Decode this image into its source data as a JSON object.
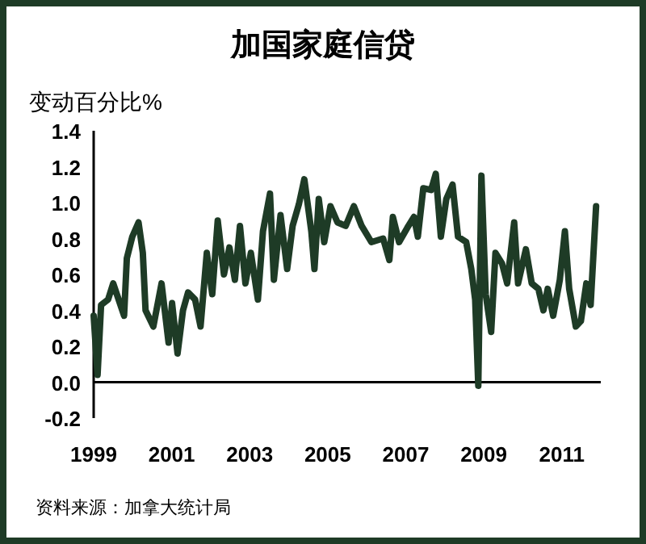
{
  "chart_data": {
    "type": "line",
    "title": "加国家庭信贷",
    "ylabel": "变动百分比%",
    "annotations": [
      "资料来源：加拿大统计局"
    ],
    "x": [
      1999.0,
      1999.1,
      1999.19,
      1999.37,
      1999.5,
      1999.64,
      1999.78,
      1999.85,
      1999.99,
      2000.15,
      2000.26,
      2000.33,
      2000.53,
      2000.74,
      2000.92,
      2001.01,
      2001.15,
      2001.29,
      2001.42,
      2001.6,
      2001.74,
      2001.9,
      2002.04,
      2002.18,
      2002.34,
      2002.48,
      2002.62,
      2002.75,
      2002.89,
      2003.03,
      2003.21,
      2003.34,
      2003.52,
      2003.62,
      2003.79,
      2003.96,
      2004.1,
      2004.26,
      2004.4,
      2004.58,
      2004.66,
      2004.77,
      2004.91,
      2005.07,
      2005.25,
      2005.46,
      2005.67,
      2005.87,
      2006.12,
      2006.42,
      2006.58,
      2006.67,
      2006.83,
      2007.04,
      2007.21,
      2007.31,
      2007.45,
      2007.65,
      2007.77,
      2007.9,
      2008.04,
      2008.2,
      2008.34,
      2008.55,
      2008.68,
      2008.78,
      2008.86,
      2008.94,
      2009.05,
      2009.19,
      2009.3,
      2009.47,
      2009.6,
      2009.78,
      2009.88,
      2010.08,
      2010.23,
      2010.4,
      2010.53,
      2010.64,
      2010.78,
      2010.95,
      2011.08,
      2011.19,
      2011.36,
      2011.49,
      2011.63,
      2011.74,
      2011.88
    ],
    "series": [
      {
        "color": "#1e3b26",
        "values": [
          0.37,
          0.04,
          0.43,
          0.46,
          0.55,
          0.46,
          0.37,
          0.69,
          0.81,
          0.89,
          0.72,
          0.4,
          0.31,
          0.55,
          0.22,
          0.44,
          0.16,
          0.4,
          0.5,
          0.46,
          0.31,
          0.72,
          0.49,
          0.9,
          0.6,
          0.75,
          0.57,
          0.87,
          0.55,
          0.72,
          0.46,
          0.84,
          1.05,
          0.57,
          0.93,
          0.63,
          0.87,
          0.99,
          1.13,
          0.84,
          0.63,
          1.02,
          0.78,
          0.98,
          0.89,
          0.87,
          0.98,
          0.87,
          0.78,
          0.8,
          0.68,
          0.92,
          0.78,
          0.86,
          0.92,
          0.81,
          1.08,
          1.07,
          1.16,
          0.81,
          1.02,
          1.1,
          0.81,
          0.78,
          0.63,
          0.46,
          -0.02,
          1.15,
          0.49,
          0.28,
          0.72,
          0.66,
          0.55,
          0.89,
          0.55,
          0.74,
          0.55,
          0.52,
          0.4,
          0.52,
          0.37,
          0.57,
          0.84,
          0.52,
          0.31,
          0.34,
          0.55,
          0.43,
          0.98
        ]
      }
    ],
    "xlim": [
      1999,
      2012
    ],
    "xticks": [
      1999,
      2001,
      2003,
      2005,
      2007,
      2009,
      2011
    ],
    "ylim": [
      -0.2,
      1.4
    ],
    "yticks": [
      {
        "value": -0.2,
        "label": "-0.2"
      },
      {
        "value": 0,
        "label": "0.0"
      },
      {
        "value": 0.2,
        "label": "0.2"
      },
      {
        "value": 0.4,
        "label": "0.4"
      },
      {
        "value": 0.6,
        "label": "0.6"
      },
      {
        "value": 0.8,
        "label": "0.8"
      },
      {
        "value": 1,
        "label": "1.0"
      },
      {
        "value": 1.2,
        "label": "1.2"
      },
      {
        "value": 1.4,
        "label": "1.4"
      }
    ],
    "ref_lines": [
      {
        "axis": "y",
        "value": 0,
        "color": "#000000"
      }
    ],
    "grid": false,
    "marker": "none",
    "line_style": "solid"
  }
}
